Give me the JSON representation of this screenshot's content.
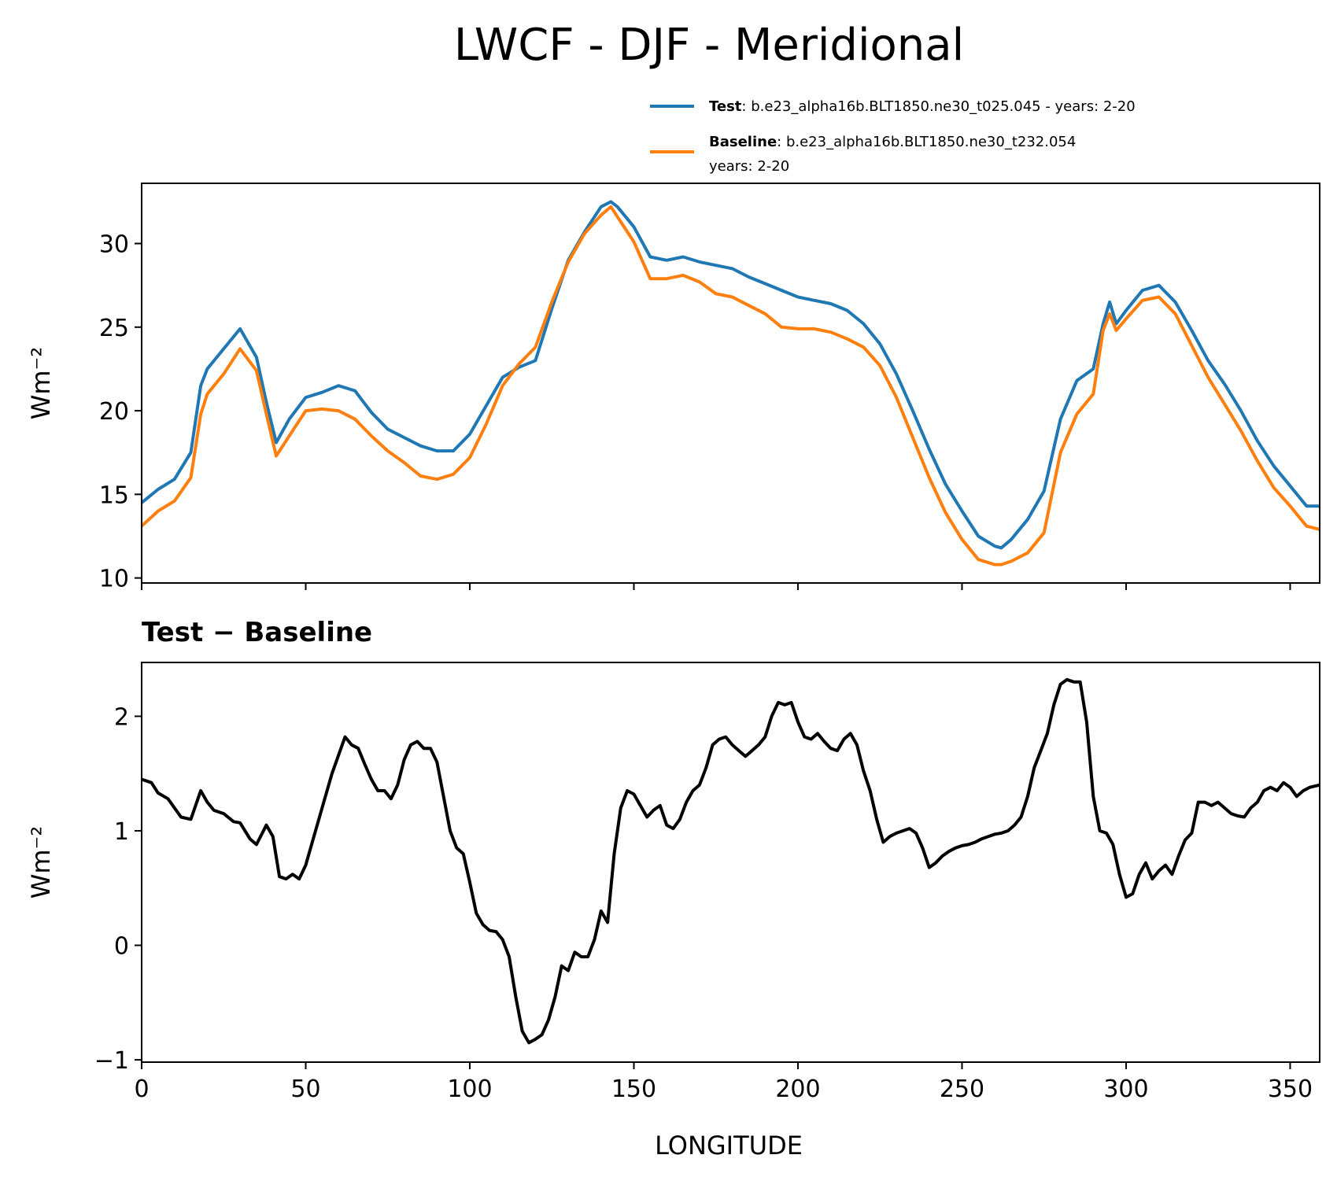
{
  "figure": {
    "title": "LWCF - DJF - Meridional"
  },
  "legend": {
    "test_label": "Test",
    "test_sep": ": ",
    "test_text": "b.e23_alpha16b.BLT1850.ne30_t025.045 - years: 2-20",
    "baseline_label": "Baseline",
    "baseline_sep": ": ",
    "baseline_text": "b.e23_alpha16b.BLT1850.ne30_t232.054",
    "baseline_years": "years: 2-20"
  },
  "colors": {
    "test": "#1f77b4",
    "baseline": "#ff7f0e",
    "diff": "#000000"
  },
  "chart_data": [
    {
      "type": "line",
      "title": "",
      "xlabel": "",
      "ylabel": "Wm⁻²",
      "xlim": [
        0,
        359
      ],
      "ylim": [
        9.7,
        33.6
      ],
      "xticks": [
        0,
        50,
        100,
        150,
        200,
        250,
        300,
        350
      ],
      "yticks": [
        10,
        15,
        20,
        25,
        30
      ],
      "ytick_labels": [
        "10",
        "15",
        "20",
        "25",
        "30"
      ],
      "x": [
        0,
        5,
        10,
        15,
        18,
        20,
        25,
        30,
        35,
        38,
        41,
        45,
        50,
        55,
        60,
        65,
        70,
        75,
        80,
        85,
        90,
        95,
        100,
        105,
        110,
        115,
        120,
        125,
        130,
        135,
        140,
        143,
        145,
        150,
        155,
        160,
        165,
        170,
        175,
        180,
        185,
        190,
        195,
        200,
        205,
        210,
        215,
        220,
        225,
        230,
        235,
        240,
        245,
        250,
        255,
        260,
        262,
        265,
        270,
        275,
        280,
        285,
        290,
        293,
        295,
        297,
        300,
        305,
        310,
        315,
        320,
        325,
        330,
        335,
        340,
        345,
        350,
        355,
        359
      ],
      "series": [
        {
          "name": "Test",
          "values": [
            14.5,
            15.3,
            15.9,
            17.5,
            21.5,
            22.5,
            23.7,
            24.9,
            23.2,
            20.5,
            18.1,
            19.5,
            20.8,
            21.1,
            21.5,
            21.2,
            19.9,
            18.9,
            18.4,
            17.9,
            17.6,
            17.6,
            18.6,
            20.3,
            22.0,
            22.6,
            23.0,
            26.1,
            29.0,
            30.7,
            32.2,
            32.5,
            32.2,
            31.0,
            29.2,
            29.0,
            29.2,
            28.9,
            28.7,
            28.5,
            28.0,
            27.6,
            27.2,
            26.8,
            26.6,
            26.4,
            26.0,
            25.2,
            24.0,
            22.2,
            20.0,
            17.7,
            15.6,
            14.0,
            12.5,
            11.9,
            11.8,
            12.3,
            13.5,
            15.2,
            19.5,
            21.8,
            22.5,
            25.2,
            26.5,
            25.2,
            26.0,
            27.2,
            27.5,
            26.5,
            24.8,
            23.0,
            21.6,
            20.0,
            18.2,
            16.7,
            15.5,
            14.3,
            14.3
          ]
        },
        {
          "name": "Baseline",
          "values": [
            13.1,
            14.0,
            14.6,
            16.0,
            19.8,
            21.0,
            22.2,
            23.7,
            22.4,
            19.8,
            17.3,
            18.5,
            20.0,
            20.1,
            20.0,
            19.5,
            18.5,
            17.6,
            16.9,
            16.1,
            15.9,
            16.2,
            17.2,
            19.2,
            21.5,
            22.8,
            23.8,
            26.5,
            28.9,
            30.6,
            31.7,
            32.2,
            31.6,
            30.1,
            27.9,
            27.9,
            28.1,
            27.7,
            27.0,
            26.8,
            26.3,
            25.8,
            25.0,
            24.9,
            24.9,
            24.7,
            24.3,
            23.8,
            22.7,
            20.8,
            18.4,
            16.0,
            13.9,
            12.3,
            11.1,
            10.8,
            10.8,
            11.0,
            11.5,
            12.7,
            17.5,
            19.8,
            21.0,
            24.8,
            25.8,
            24.8,
            25.5,
            26.6,
            26.8,
            25.8,
            23.9,
            22.0,
            20.4,
            18.8,
            17.0,
            15.4,
            14.3,
            13.1,
            12.9
          ]
        }
      ]
    },
    {
      "type": "line",
      "title": "Test − Baseline",
      "xlabel": "LONGITUDE",
      "ylabel": "Wm⁻²",
      "xlim": [
        0,
        359
      ],
      "ylim": [
        -1.02,
        2.47
      ],
      "xticks": [
        0,
        50,
        100,
        150,
        200,
        250,
        300,
        350
      ],
      "xtick_labels": [
        "0",
        "50",
        "100",
        "150",
        "200",
        "250",
        "300",
        "350"
      ],
      "yticks": [
        -1,
        0,
        1,
        2
      ],
      "ytick_labels": [
        "−1",
        "0",
        "1",
        "2"
      ],
      "x": [
        0,
        3,
        5,
        8,
        12,
        15,
        18,
        20,
        22,
        25,
        28,
        30,
        33,
        35,
        38,
        40,
        42,
        44,
        46,
        48,
        50,
        52,
        55,
        58,
        62,
        64,
        66,
        68,
        70,
        72,
        74,
        76,
        78,
        80,
        82,
        84,
        86,
        88,
        90,
        94,
        96,
        98,
        100,
        102,
        104,
        106,
        108,
        110,
        112,
        114,
        116,
        118,
        120,
        122,
        124,
        126,
        128,
        130,
        132,
        134,
        136,
        138,
        140,
        142,
        144,
        146,
        148,
        150,
        152,
        154,
        156,
        158,
        160,
        162,
        164,
        166,
        168,
        170,
        172,
        174,
        176,
        178,
        180,
        182,
        184,
        186,
        188,
        190,
        192,
        194,
        196,
        198,
        200,
        202,
        204,
        206,
        208,
        210,
        212,
        214,
        216,
        218,
        220,
        222,
        224,
        226,
        228,
        230,
        232,
        234,
        236,
        238,
        240,
        242,
        244,
        246,
        248,
        250,
        252,
        254,
        256,
        258,
        260,
        262,
        264,
        266,
        268,
        270,
        272,
        274,
        276,
        278,
        280,
        282,
        284,
        286,
        288,
        290,
        292,
        294,
        296,
        298,
        300,
        302,
        304,
        306,
        308,
        310,
        312,
        314,
        316,
        318,
        320,
        322,
        324,
        326,
        328,
        330,
        332,
        334,
        336,
        338,
        340,
        342,
        344,
        346,
        348,
        350,
        352,
        354,
        356,
        359
      ],
      "series": [
        {
          "name": "Test − Baseline",
          "values": [
            1.45,
            1.42,
            1.33,
            1.28,
            1.12,
            1.1,
            1.35,
            1.25,
            1.18,
            1.15,
            1.08,
            1.07,
            0.93,
            0.88,
            1.05,
            0.95,
            0.6,
            0.58,
            0.62,
            0.58,
            0.7,
            0.9,
            1.2,
            1.5,
            1.82,
            1.75,
            1.72,
            1.58,
            1.45,
            1.35,
            1.35,
            1.28,
            1.4,
            1.62,
            1.75,
            1.78,
            1.72,
            1.72,
            1.6,
            1.0,
            0.85,
            0.8,
            0.55,
            0.28,
            0.18,
            0.13,
            0.12,
            0.05,
            -0.1,
            -0.45,
            -0.75,
            -0.85,
            -0.82,
            -0.78,
            -0.65,
            -0.45,
            -0.18,
            -0.22,
            -0.06,
            -0.1,
            -0.1,
            0.05,
            0.3,
            0.2,
            0.8,
            1.2,
            1.35,
            1.32,
            1.22,
            1.12,
            1.18,
            1.22,
            1.05,
            1.02,
            1.1,
            1.25,
            1.35,
            1.4,
            1.55,
            1.75,
            1.8,
            1.82,
            1.75,
            1.7,
            1.65,
            1.7,
            1.75,
            1.82,
            2.0,
            2.12,
            2.1,
            2.12,
            1.95,
            1.82,
            1.8,
            1.85,
            1.78,
            1.72,
            1.7,
            1.8,
            1.85,
            1.75,
            1.52,
            1.35,
            1.1,
            0.9,
            0.95,
            0.98,
            1.0,
            1.02,
            0.98,
            0.85,
            0.68,
            0.72,
            0.78,
            0.82,
            0.85,
            0.87,
            0.88,
            0.9,
            0.93,
            0.95,
            0.97,
            0.98,
            1.0,
            1.05,
            1.12,
            1.3,
            1.55,
            1.7,
            1.85,
            2.1,
            2.28,
            2.32,
            2.3,
            2.3,
            1.95,
            1.3,
            1.0,
            0.98,
            0.88,
            0.62,
            0.42,
            0.45,
            0.62,
            0.72,
            0.58,
            0.65,
            0.7,
            0.62,
            0.78,
            0.92,
            0.98,
            1.25,
            1.25,
            1.22,
            1.25,
            1.2,
            1.15,
            1.13,
            1.12,
            1.2,
            1.25,
            1.35,
            1.38,
            1.35,
            1.42,
            1.38,
            1.3,
            1.35,
            1.38,
            1.4
          ]
        }
      ]
    }
  ]
}
